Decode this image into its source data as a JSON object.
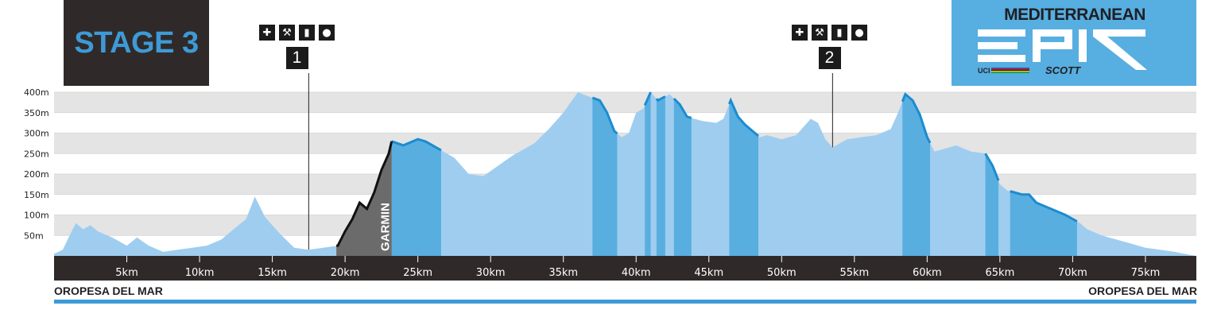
{
  "stage": {
    "title": "STAGE 3"
  },
  "brand": {
    "name": "MEDITERRANEAN",
    "subtitle": "EPIC",
    "sponsor": "SCOTT",
    "uci": "UCI"
  },
  "timing": {
    "label": "GARMIN"
  },
  "route": {
    "start": "OROPESA DEL MAR",
    "finish": "OROPESA DEL MAR"
  },
  "stations": [
    {
      "number": "1",
      "km": 17.5,
      "icons": [
        "medical-cross-icon",
        "tools-icon",
        "bottle-icon",
        "food-icon"
      ]
    },
    {
      "number": "2",
      "km": 53.5,
      "icons": [
        "medical-cross-icon",
        "tools-icon",
        "bottle-icon",
        "food-icon"
      ]
    }
  ],
  "colors": {
    "profile": "#9fcdef",
    "segment": "#59aee0",
    "segment_line": "#1b8cd0",
    "timed": "#6b6b6b",
    "band": "#e4e4e4",
    "axis_bar": "#2f2a29",
    "bottom_line": "#3d9ad6"
  },
  "chart_data": {
    "type": "area",
    "title": "",
    "xlabel": "",
    "ylabel": "",
    "xlim": [
      0,
      78.5
    ],
    "ylim": [
      0,
      400
    ],
    "x_ticks": [
      5,
      10,
      15,
      20,
      25,
      30,
      35,
      40,
      45,
      50,
      55,
      60,
      65,
      70,
      75
    ],
    "x_tick_labels": [
      "5km",
      "10km",
      "15km",
      "20km",
      "25km",
      "30km",
      "35km",
      "40km",
      "45km",
      "50km",
      "55km",
      "60km",
      "65km",
      "70km",
      "75km"
    ],
    "y_ticks": [
      50,
      100,
      150,
      200,
      250,
      300,
      350,
      400
    ],
    "y_tick_labels": [
      "50m",
      "100m",
      "150m",
      "200m",
      "250m",
      "300m",
      "350m",
      "400m"
    ],
    "grid": true,
    "series": [
      {
        "values": [
          [
            0,
            5
          ],
          [
            0.6,
            15
          ],
          [
            1.0,
            45
          ],
          [
            1.5,
            80
          ],
          [
            2.0,
            65
          ],
          [
            2.5,
            75
          ],
          [
            3.0,
            60
          ],
          [
            4.0,
            45
          ],
          [
            5.0,
            25
          ],
          [
            5.7,
            45
          ],
          [
            6.5,
            25
          ],
          [
            7.5,
            10
          ],
          [
            8.5,
            15
          ],
          [
            9.5,
            20
          ],
          [
            10.5,
            25
          ],
          [
            11.5,
            40
          ],
          [
            12.5,
            70
          ],
          [
            13.2,
            90
          ],
          [
            13.8,
            145
          ],
          [
            14.5,
            95
          ],
          [
            15.5,
            55
          ],
          [
            16.5,
            20
          ],
          [
            17.5,
            15
          ],
          [
            18.5,
            20
          ],
          [
            19.5,
            25
          ],
          [
            20.0,
            60
          ],
          [
            20.5,
            90
          ],
          [
            21.0,
            130
          ],
          [
            21.5,
            115
          ],
          [
            22.0,
            155
          ],
          [
            22.5,
            210
          ],
          [
            23.0,
            250
          ],
          [
            23.2,
            280
          ],
          [
            24.0,
            270
          ],
          [
            25.0,
            285
          ],
          [
            25.5,
            280
          ],
          [
            26.5,
            260
          ],
          [
            27.5,
            240
          ],
          [
            28.5,
            200
          ],
          [
            29.5,
            195
          ],
          [
            30.5,
            220
          ],
          [
            31.5,
            245
          ],
          [
            33.0,
            275
          ],
          [
            34.0,
            310
          ],
          [
            35.0,
            350
          ],
          [
            36.0,
            400
          ],
          [
            36.7,
            390
          ],
          [
            37.5,
            380
          ],
          [
            38.0,
            350
          ],
          [
            38.5,
            305
          ],
          [
            39.0,
            290
          ],
          [
            39.5,
            300
          ],
          [
            40.0,
            350
          ],
          [
            40.5,
            360
          ],
          [
            41.0,
            400
          ],
          [
            41.5,
            380
          ],
          [
            42.3,
            395
          ],
          [
            43.0,
            370
          ],
          [
            43.5,
            340
          ],
          [
            44.0,
            335
          ],
          [
            44.5,
            330
          ],
          [
            45.5,
            325
          ],
          [
            46.0,
            335
          ],
          [
            46.5,
            380
          ],
          [
            47.0,
            340
          ],
          [
            47.5,
            320
          ],
          [
            48.5,
            290
          ],
          [
            49.0,
            295
          ],
          [
            50.0,
            285
          ],
          [
            51.0,
            295
          ],
          [
            52.0,
            335
          ],
          [
            52.5,
            325
          ],
          [
            53.0,
            285
          ],
          [
            53.5,
            265
          ],
          [
            54.5,
            285
          ],
          [
            55.5,
            290
          ],
          [
            56.5,
            295
          ],
          [
            57.5,
            310
          ],
          [
            58.0,
            350
          ],
          [
            58.5,
            395
          ],
          [
            59.0,
            380
          ],
          [
            59.5,
            345
          ],
          [
            60.0,
            290
          ],
          [
            60.5,
            255
          ],
          [
            61.0,
            260
          ],
          [
            62.0,
            270
          ],
          [
            63.0,
            255
          ],
          [
            64.0,
            250
          ],
          [
            64.5,
            220
          ],
          [
            65.0,
            175
          ],
          [
            65.5,
            160
          ],
          [
            66.5,
            150
          ],
          [
            67.0,
            150
          ],
          [
            67.5,
            130
          ],
          [
            68.5,
            115
          ],
          [
            69.5,
            100
          ],
          [
            70.5,
            80
          ],
          [
            71.0,
            65
          ],
          [
            72.0,
            50
          ],
          [
            73.0,
            40
          ],
          [
            74.0,
            30
          ],
          [
            75.0,
            20
          ],
          [
            76.0,
            15
          ],
          [
            77.0,
            10
          ],
          [
            78.0,
            3
          ],
          [
            78.5,
            0
          ]
        ]
      }
    ],
    "segments_km": [
      [
        23.2,
        26.1,
        "timed"
      ],
      [
        25.6,
        26.6,
        "climb"
      ],
      [
        37.0,
        38.7,
        "climb"
      ],
      [
        40.6,
        41.0,
        "climb"
      ],
      [
        41.4,
        42.0,
        "climb"
      ],
      [
        42.6,
        43.8,
        "climb"
      ],
      [
        46.4,
        48.4,
        "climb"
      ],
      [
        58.3,
        60.2,
        "climb"
      ],
      [
        64.0,
        64.9,
        "climb"
      ],
      [
        65.7,
        70.3,
        "climb"
      ]
    ],
    "timed_km": [
      19.4,
      23.2
    ]
  }
}
